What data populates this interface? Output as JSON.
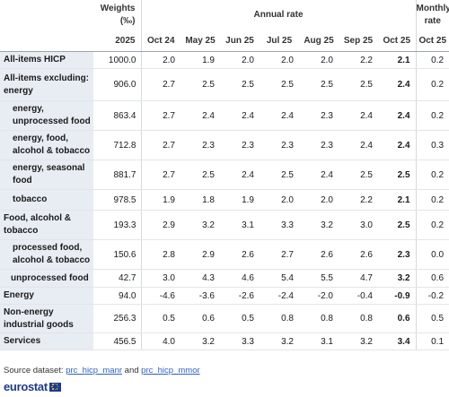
{
  "header": {
    "weights_label": "Weights (‰)",
    "annual_rate_label": "Annual rate",
    "monthly_rate_label": "Monthly rate",
    "columns": [
      "2025",
      "Oct 24",
      "May 25",
      "Jun 25",
      "Jul 25",
      "Aug 25",
      "Sep 25",
      "Oct 25",
      "Oct 25"
    ]
  },
  "rows": [
    {
      "label": "All-items HICP",
      "weight": "1000.0",
      "values": [
        "2.0",
        "1.9",
        "2.0",
        "2.0",
        "2.0",
        "2.2",
        "2.1",
        "0.2"
      ]
    },
    {
      "label": "All-items excluding: energy",
      "weight": "906.0",
      "values": [
        "2.7",
        "2.5",
        "2.5",
        "2.5",
        "2.5",
        "2.5",
        "2.4",
        "0.2"
      ]
    },
    {
      "label": "energy, unprocessed food",
      "weight": "863.4",
      "values": [
        "2.7",
        "2.4",
        "2.4",
        "2.4",
        "2.3",
        "2.4",
        "2.4",
        "0.2"
      ]
    },
    {
      "label": "energy, food, alcohol & tobacco",
      "weight": "712.8",
      "values": [
        "2.7",
        "2.3",
        "2.3",
        "2.3",
        "2.3",
        "2.4",
        "2.4",
        "0.3"
      ]
    },
    {
      "label": "energy, seasonal food",
      "weight": "881.7",
      "values": [
        "2.7",
        "2.5",
        "2.4",
        "2.5",
        "2.4",
        "2.5",
        "2.5",
        "0.2"
      ]
    },
    {
      "label": "tobacco",
      "weight": "978.5",
      "values": [
        "1.9",
        "1.8",
        "1.9",
        "2.0",
        "2.0",
        "2.2",
        "2.1",
        "0.2"
      ]
    },
    {
      "label": "Food, alcohol & tobacco",
      "weight": "193.3",
      "values": [
        "2.9",
        "3.2",
        "3.1",
        "3.3",
        "3.2",
        "3.0",
        "2.5",
        "0.2"
      ]
    },
    {
      "label": "processed food, alcohol & tobacco",
      "weight": "150.6",
      "values": [
        "2.8",
        "2.9",
        "2.6",
        "2.7",
        "2.6",
        "2.6",
        "2.3",
        "0.0"
      ]
    },
    {
      "label": "unprocessed food",
      "weight": "42.7",
      "values": [
        "3.0",
        "4.3",
        "4.6",
        "5.4",
        "5.5",
        "4.7",
        "3.2",
        "0.6"
      ]
    },
    {
      "label": "Energy",
      "weight": "94.0",
      "values": [
        "-4.6",
        "-3.6",
        "-2.6",
        "-2.4",
        "-2.0",
        "-0.4",
        "-0.9",
        "-0.2"
      ]
    },
    {
      "label": "Non-energy industrial goods",
      "weight": "256.3",
      "values": [
        "0.5",
        "0.6",
        "0.5",
        "0.8",
        "0.8",
        "0.8",
        "0.6",
        "0.5"
      ]
    },
    {
      "label": "Services",
      "weight": "456.5",
      "values": [
        "4.0",
        "3.2",
        "3.3",
        "3.2",
        "3.1",
        "3.2",
        "3.4",
        "0.1"
      ]
    }
  ],
  "footer": {
    "source_prefix": "Source dataset: ",
    "link1": "prc_hicp_manr",
    "and": " and ",
    "link2": "prc_hicp_mmor",
    "logo_text": "eurostat"
  },
  "colors": {
    "label_bg": "#e8edf4",
    "link": "#2e63c5",
    "brand": "#1e3a8c"
  }
}
